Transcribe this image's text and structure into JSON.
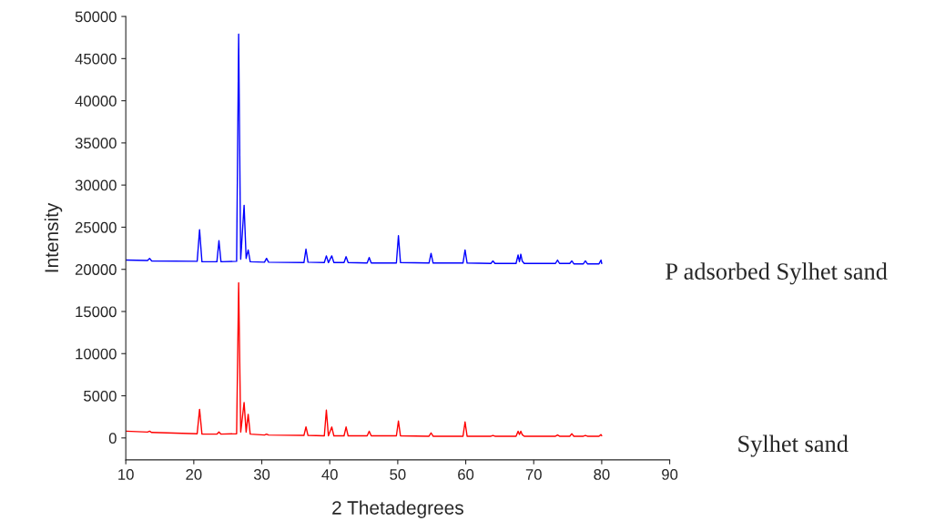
{
  "chart_data": {
    "type": "line",
    "xlabel": "2 Thetadegrees",
    "ylabel": "Intensity",
    "x": [
      10,
      13.2,
      13.5,
      13.8,
      20.5,
      20.85,
      21.2,
      23.4,
      23.7,
      24,
      26.3,
      26.6,
      26.9,
      27.4,
      27.7,
      28.0,
      28.3,
      30.4,
      30.7,
      31,
      36.2,
      36.5,
      36.8,
      39.2,
      39.5,
      39.8,
      40.3,
      40.6,
      42.1,
      42.4,
      42.7,
      45.5,
      45.8,
      46.1,
      49.8,
      50.1,
      50.4,
      54.6,
      54.9,
      55.2,
      59.6,
      59.9,
      60.2,
      63.7,
      64,
      64.3,
      67.4,
      67.7,
      67.9,
      68.1,
      68.3,
      68.6,
      73.2,
      73.5,
      73.8,
      75.3,
      75.6,
      75.9,
      77.3,
      77.6,
      77.9,
      79.6,
      79.9,
      80
    ],
    "series": [
      {
        "name": "P adsorbed Sylhet sand",
        "color": "#0000ff",
        "values": [
          21100,
          21050,
          21300,
          21000,
          20950,
          24700,
          20900,
          20900,
          23400,
          20900,
          20950,
          47900,
          21200,
          27600,
          21300,
          22300,
          20900,
          20850,
          21300,
          20850,
          20800,
          22400,
          20850,
          20800,
          21600,
          20800,
          21600,
          20800,
          20800,
          21500,
          20800,
          20750,
          21400,
          20750,
          20750,
          24000,
          20800,
          20750,
          21900,
          20750,
          20750,
          22300,
          20750,
          20700,
          21000,
          20700,
          20700,
          21700,
          20900,
          21800,
          21000,
          20700,
          20700,
          21100,
          20700,
          20700,
          21000,
          20650,
          20650,
          21000,
          20650,
          20650,
          21100,
          20700
        ]
      },
      {
        "name": "Sylhet sand",
        "color": "#ff0000",
        "values": [
          800,
          700,
          800,
          650,
          500,
          3400,
          450,
          450,
          700,
          450,
          500,
          18400,
          700,
          4200,
          700,
          2800,
          450,
          350,
          450,
          350,
          300,
          1300,
          300,
          250,
          3300,
          250,
          1300,
          250,
          250,
          1300,
          250,
          250,
          800,
          250,
          250,
          2000,
          250,
          200,
          600,
          200,
          200,
          1900,
          200,
          200,
          300,
          200,
          200,
          800,
          400,
          800,
          400,
          200,
          200,
          350,
          200,
          200,
          500,
          200,
          200,
          300,
          200,
          200,
          400,
          250
        ]
      }
    ],
    "xlim": [
      10,
      90
    ],
    "xticks": [
      10,
      20,
      30,
      40,
      50,
      60,
      70,
      80,
      90
    ],
    "ylim": [
      -2600,
      50000
    ],
    "yticks": [
      0,
      5000,
      10000,
      15000,
      20000,
      25000,
      30000,
      35000,
      40000,
      45000,
      50000
    ],
    "grid": false,
    "legend": false
  }
}
